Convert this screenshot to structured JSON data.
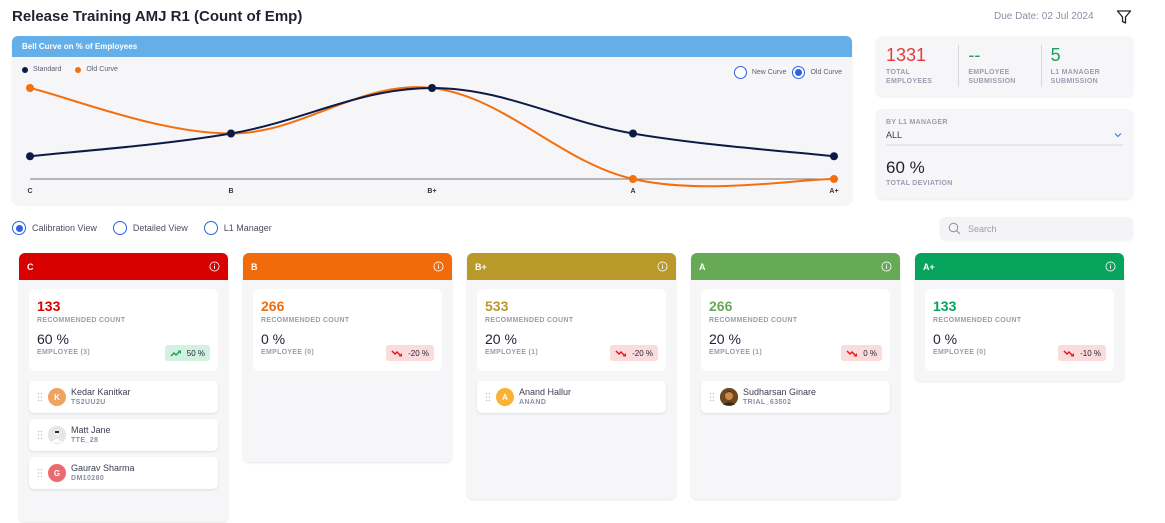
{
  "header": {
    "title": "Release Training AMJ R1 (Count of Emp)",
    "due_date": "Due Date: 02 Jul 2024",
    "filter_icon": "filter-icon"
  },
  "chart_card": {
    "title": "Bell Curve on % of Employees",
    "curve_options": [
      {
        "label": "New Curve",
        "checked": false
      },
      {
        "label": "Old Curve",
        "checked": true
      }
    ]
  },
  "chart_data": {
    "type": "line",
    "title": "Bell Curve on % of Employees",
    "categories": [
      "C",
      "B",
      "B+",
      "A",
      "A+"
    ],
    "series": [
      {
        "name": "Standard",
        "color": "#0c1a45",
        "values": [
          10,
          20,
          40,
          20,
          10
        ]
      },
      {
        "name": "Old Curve",
        "color": "#f2700f",
        "values": [
          40,
          20,
          40,
          0,
          0
        ]
      }
    ],
    "ylim": [
      0,
      40
    ],
    "grid": false,
    "legend": "top-left"
  },
  "kpis": [
    {
      "value": "1331",
      "label_1": "TOTAL",
      "label_2": "EMPLOYEES",
      "color": "#e03c3c"
    },
    {
      "value": "--",
      "label_1": "EMPLOYEE",
      "label_2": "SUBMISSION",
      "color": "#1ba35a"
    },
    {
      "value": "5",
      "label_1": "L1 MANAGER",
      "label_2": "SUBMISSION",
      "color": "#1ba35a"
    }
  ],
  "manager_filter": {
    "label": "BY L1 MANAGER",
    "selected": "ALL",
    "deviation_value": "60 %",
    "deviation_label": "TOTAL DEVIATION"
  },
  "views": [
    {
      "label": "Calibration View",
      "checked": true
    },
    {
      "label": "Detailed View",
      "checked": false
    },
    {
      "label": "L1 Manager",
      "checked": false
    }
  ],
  "search": {
    "placeholder": "Search",
    "value": ""
  },
  "columns": [
    {
      "grade": "C",
      "color": "#d90000",
      "recommended_count": "133",
      "recommended_label": "RECOMMENDED COUNT",
      "employee_pct": "60 %",
      "employee_label": "EMPLOYEE (3)",
      "deviation": "50 %",
      "trend": "up",
      "employees": [
        {
          "name": "Kedar Kanitkar",
          "code": "TS2UU2U",
          "initial": "K",
          "avatar_color": "#f0a261",
          "photo": false
        },
        {
          "name": "Matt Jane",
          "code": "TTE_28",
          "initial": "",
          "avatar_color": "#e4e6ea",
          "photo": true
        },
        {
          "name": "Gaurav Sharma",
          "code": "DM10280",
          "initial": "G",
          "avatar_color": "#ec6a6f",
          "photo": false
        }
      ]
    },
    {
      "grade": "B",
      "color": "#f26b0a",
      "recommended_count": "266",
      "recommended_label": "RECOMMENDED COUNT",
      "employee_pct": "0 %",
      "employee_label": "EMPLOYEE (0)",
      "deviation": "-20 %",
      "trend": "down",
      "employees": []
    },
    {
      "grade": "B+",
      "color": "#b8992a",
      "recommended_count": "533",
      "recommended_label": "RECOMMENDED COUNT",
      "employee_pct": "20 %",
      "employee_label": "EMPLOYEE (1)",
      "deviation": "-20 %",
      "trend": "down",
      "employees": [
        {
          "name": "Anand Hallur",
          "code": "ANAND",
          "initial": "A",
          "avatar_color": "#f9b233",
          "photo": false
        }
      ]
    },
    {
      "grade": "A",
      "color": "#67aa55",
      "recommended_count": "266",
      "recommended_label": "RECOMMENDED COUNT",
      "employee_pct": "20 %",
      "employee_label": "EMPLOYEE (1)",
      "deviation": "0 %",
      "trend": "down",
      "employees": [
        {
          "name": "Sudharsan Ginare",
          "code": "TRIAL_63502",
          "initial": "",
          "avatar_color": "#6b4a22",
          "photo": true
        }
      ]
    },
    {
      "grade": "A+",
      "color": "#06a35c",
      "recommended_count": "133",
      "recommended_label": "RECOMMENDED COUNT",
      "employee_pct": "0 %",
      "employee_label": "EMPLOYEE (0)",
      "deviation": "-10 %",
      "trend": "down",
      "employees": []
    }
  ]
}
